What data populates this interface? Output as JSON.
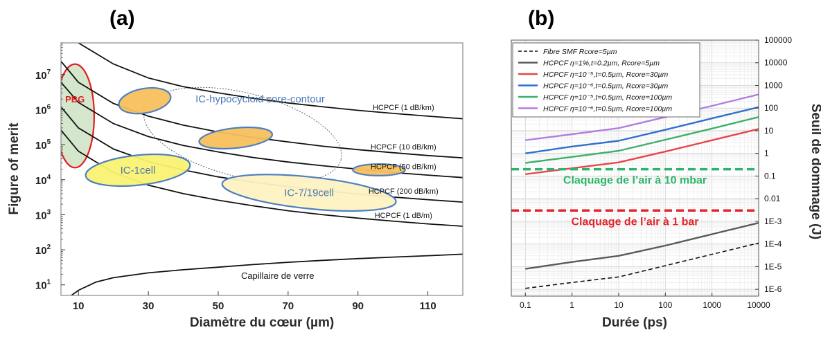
{
  "panel_a": {
    "label": "(a)",
    "xlabel": "Diamètre du cœur (µm)",
    "ylabel": "Figure of merit"
  },
  "panel_b": {
    "label": "(b)",
    "xlabel": "Durée (ps)",
    "ylabel": "Seuil de dommage (J)"
  },
  "chart_data": [
    {
      "type": "line",
      "xlabel": "Diamètre du cœur (µm)",
      "ylabel": "Figure of merit",
      "xlim": [
        5,
        120
      ],
      "ylim": [
        5,
        80000000.0
      ],
      "yscale": "log",
      "xticks": [
        10,
        30,
        50,
        70,
        90,
        110
      ],
      "yticks": [
        {
          "value": 10,
          "label": "10^1"
        },
        {
          "value": 100,
          "label": "10^2"
        },
        {
          "value": 1000,
          "label": "10^3"
        },
        {
          "value": 10000,
          "label": "10^4"
        },
        {
          "value": 100000,
          "label": "10^5"
        },
        {
          "value": 1000000,
          "label": "10^6"
        },
        {
          "value": 10000000,
          "label": "10^7"
        }
      ],
      "grid": false,
      "series": [
        {
          "name": "HCPCF (1 dB/km)",
          "x": [
            10,
            20,
            30,
            40,
            50,
            60,
            70,
            80,
            90,
            100,
            110,
            120
          ],
          "y": [
            80000000.0,
            20000000.0,
            8000000.0,
            4500000.0,
            3000000.0,
            2100000.0,
            1550000.0,
            1200000.0,
            950000.0,
            780000.0,
            650000.0,
            550000.0
          ]
        },
        {
          "name": "HCPCF (10 dB/km)",
          "x": [
            5,
            10,
            20,
            30,
            40,
            50,
            60,
            70,
            80,
            90,
            100,
            110,
            120
          ],
          "y": [
            24000000.0,
            6000000.0,
            1500000.0,
            650000.0,
            360000.0,
            230000.0,
            160000.0,
            120000.0,
            90000.0,
            72000.0,
            59000.0,
            49000.0,
            42000.0
          ]
        },
        {
          "name": "HCPCF (50 dB/km)",
          "x": [
            5,
            10,
            20,
            30,
            40,
            50,
            60,
            70,
            80,
            90,
            100,
            110,
            120
          ],
          "y": [
            6000000.0,
            1600000.0,
            400000.0,
            170000.0,
            95000.0,
            62000.0,
            43000.0,
            32000.0,
            25000.0,
            20000.0,
            16000.0,
            13500.0,
            11500.0
          ]
        },
        {
          "name": "HCPCF (200 dB/km)",
          "x": [
            5,
            10,
            20,
            30,
            40,
            50,
            60,
            70,
            80,
            90,
            100,
            110,
            120
          ],
          "y": [
            1200000.0,
            300000.0,
            75000.0,
            33000.0,
            19000.0,
            12000.0,
            8500.0,
            6300.0,
            4900.0,
            3900.0,
            3200.0,
            2700.0,
            2300.0
          ]
        },
        {
          "name": "HCPCF (1 dB/m)",
          "x": [
            5,
            10,
            20,
            30,
            40,
            50,
            60,
            70,
            80,
            90,
            100,
            110,
            120
          ],
          "y": [
            260000.0,
            65000.0,
            16000.0,
            7000.0,
            4000.0,
            2600.0,
            1800.0,
            1300.0,
            1000.0,
            800.0,
            660.0,
            550.0,
            470.0
          ]
        },
        {
          "name": "Capillaire de verre",
          "x": [
            8,
            10,
            15,
            20,
            30,
            40,
            50,
            60,
            70,
            80,
            90,
            100,
            110,
            120
          ],
          "y": [
            5,
            7,
            12,
            16,
            22,
            27,
            32,
            38,
            44,
            50,
            56,
            62,
            68,
            75
          ]
        }
      ],
      "regions": [
        {
          "label": "PBG",
          "x_center": 9,
          "y_range": [
            22000.0,
            20000000.0
          ],
          "fill": "#cfe3c6",
          "stroke": "#e21d1d"
        },
        {
          "label": "IC-hypocycloid core-contour",
          "x_center": 57,
          "y_range": [
            12000.0,
            3000000.0
          ],
          "stroke": "#666666",
          "style": "dotted"
        },
        {
          "label": "IC-1cell",
          "x_center": 27,
          "y_range": [
            7000.0,
            50000.0
          ],
          "fill": "#faf272",
          "stroke": "#4f7fc0"
        },
        {
          "label": "IC-7/19cell",
          "x_center": 76,
          "y_range": [
            1500.0,
            12000.0
          ],
          "fill": "#fdf2c2",
          "stroke": "#4f7fc0"
        },
        {
          "label": "",
          "x_center": 29,
          "y_range": [
            800000.0,
            4000000.0
          ],
          "fill": "#f8c05c",
          "stroke": "#4f7fc0"
        },
        {
          "label": "",
          "x_center": 55,
          "y_range": [
            80000.0,
            300000.0
          ],
          "fill": "#f8c05c",
          "stroke": "#4f7fc0"
        },
        {
          "label": "",
          "x_center": 96,
          "y_range": [
            13000.0,
            28000.0
          ],
          "fill": "#f8c05c",
          "stroke": "#4f7fc0"
        }
      ]
    },
    {
      "type": "line",
      "xlabel": "Durée (ps)",
      "ylabel": "Seuil de dommage (J)",
      "xscale": "log",
      "yscale": "log",
      "xlim": [
        0.05,
        10000
      ],
      "ylim": [
        5e-07,
        100000
      ],
      "xticks": [
        {
          "value": 0.1,
          "label": "0.1"
        },
        {
          "value": 1,
          "label": "1"
        },
        {
          "value": 10,
          "label": "10"
        },
        {
          "value": 100,
          "label": "100"
        },
        {
          "value": 1000,
          "label": "1000"
        },
        {
          "value": 10000,
          "label": "10000"
        }
      ],
      "yticks": [
        {
          "value": 100000,
          "label": "100000"
        },
        {
          "value": 10000,
          "label": "10000"
        },
        {
          "value": 1000,
          "label": "1000"
        },
        {
          "value": 100,
          "label": "100"
        },
        {
          "value": 10,
          "label": "10"
        },
        {
          "value": 1,
          "label": "1"
        },
        {
          "value": 0.1,
          "label": "0.1"
        },
        {
          "value": 0.01,
          "label": "0.01"
        },
        {
          "value": 0.001,
          "label": "1E-3"
        },
        {
          "value": 0.0001,
          "label": "1E-4"
        },
        {
          "value": 1e-05,
          "label": "1E-5"
        },
        {
          "value": 1e-06,
          "label": "1E-6"
        }
      ],
      "grid": true,
      "legend_position": "top-left",
      "series": [
        {
          "name": "Fibre SMF Rcore=5µm",
          "color": "#111111",
          "dash": "dashed",
          "x": [
            0.1,
            1,
            10,
            100,
            1000,
            10000
          ],
          "y": [
            1.1e-06,
            2e-06,
            3.5e-06,
            1.1e-05,
            3.5e-05,
            0.00011
          ]
        },
        {
          "name": "HCPCF η=1%,t=0.2µm, Rcore=5µm",
          "color": "#595959",
          "dash": "solid",
          "x": [
            0.1,
            1,
            10,
            100,
            1000,
            10000
          ],
          "y": [
            8e-06,
            1.6e-05,
            3e-05,
            8.5e-05,
            0.00027,
            0.00085
          ]
        },
        {
          "name": "HCPCF η=10⁻⁵,t=0.5µm, Rcore=30µm",
          "color": "#e8454a",
          "dash": "solid",
          "x": [
            0.1,
            1,
            10,
            100,
            1000,
            10000
          ],
          "y": [
            0.12,
            0.22,
            0.4,
            1.2,
            3.8,
            12
          ]
        },
        {
          "name": "HCPCF η=10⁻⁶,t=0.5µm, Rcore=30µm",
          "color": "#2f6fcf",
          "dash": "solid",
          "x": [
            0.1,
            1,
            10,
            100,
            1000,
            10000
          ],
          "y": [
            1.0,
            2.0,
            3.6,
            11,
            35,
            110
          ]
        },
        {
          "name": "HCPCF η=10⁻⁵,t=0.5µm, Rcore=100µm",
          "color": "#3db06a",
          "dash": "solid",
          "x": [
            0.1,
            1,
            10,
            100,
            1000,
            10000
          ],
          "y": [
            0.38,
            0.7,
            1.3,
            4.0,
            12.5,
            40
          ]
        },
        {
          "name": "HCPCF η=10⁻⁶,t=0.5µm, Rcore=100µm",
          "color": "#b07fe0",
          "dash": "solid",
          "x": [
            0.1,
            1,
            10,
            100,
            1000,
            10000
          ],
          "y": [
            3.8,
            7.0,
            13,
            40,
            125,
            400
          ]
        }
      ],
      "thresholds": [
        {
          "label": "Claquage de l’air à 10 mbar",
          "value": 0.2,
          "color": "#2cb56a"
        },
        {
          "label": "Claquage de l’air à 1 bar",
          "value": 0.003,
          "color": "#e2262b"
        }
      ]
    }
  ]
}
